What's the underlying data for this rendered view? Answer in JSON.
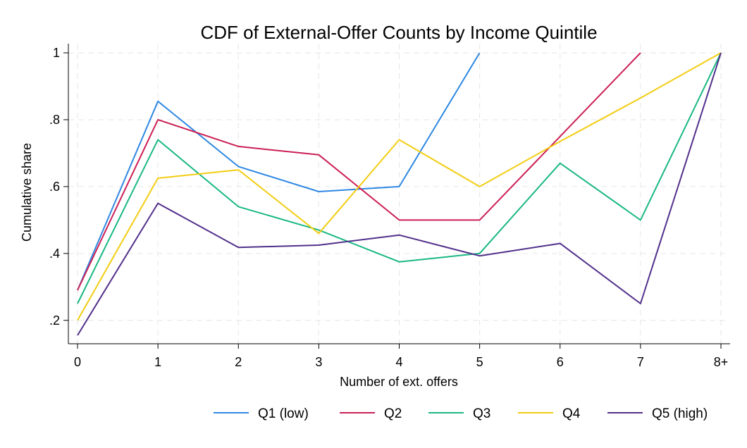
{
  "chart_data": {
    "type": "line",
    "title": "CDF of External-Offer Counts by Income Quintile",
    "xlabel": "Number of ext. offers",
    "ylabel": "Cumulative share",
    "categories": [
      "0",
      "1",
      "2",
      "3",
      "4",
      "5",
      "6",
      "7",
      "8+"
    ],
    "yticks": [
      0.2,
      0.4,
      0.6,
      0.8,
      1
    ],
    "ytick_labels": [
      ".2",
      ".4",
      ".6",
      ".8",
      "1"
    ],
    "ylim": [
      0.13,
      1.0
    ],
    "grid": true,
    "legend_position": "bottom",
    "series": [
      {
        "name": "Q1 (low)",
        "color": "#2f88e2",
        "values": [
          0.29,
          0.855,
          0.66,
          0.585,
          0.6,
          1.0,
          null,
          null,
          null
        ]
      },
      {
        "name": "Q2",
        "color": "#cc1f55",
        "values": [
          0.29,
          0.8,
          0.72,
          0.695,
          0.5,
          0.5,
          0.75,
          1.0,
          null
        ]
      },
      {
        "name": "Q3",
        "color": "#1ab882",
        "values": [
          0.25,
          0.74,
          0.54,
          0.47,
          0.375,
          0.4,
          0.67,
          0.5,
          1.0
        ]
      },
      {
        "name": "Q4",
        "color": "#f2cd12",
        "values": [
          0.2,
          0.625,
          0.65,
          0.46,
          0.74,
          0.6,
          0.735,
          0.865,
          1.0
        ]
      },
      {
        "name": "Q5 (high)",
        "color": "#52308b",
        "values": [
          0.155,
          0.55,
          0.418,
          0.425,
          0.455,
          0.393,
          0.43,
          0.25,
          1.0
        ]
      }
    ]
  }
}
